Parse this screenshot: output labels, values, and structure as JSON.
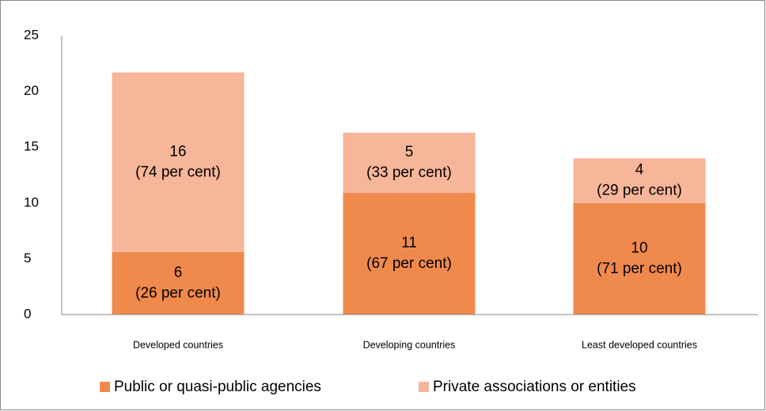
{
  "chart_data": {
    "type": "stacked_bar",
    "categories": [
      "Developed countries",
      "Developing countries",
      "Least developed countries"
    ],
    "series": [
      {
        "name": "Public or quasi-public agencies",
        "color": "#f0894c",
        "values": [
          5.6,
          10.9,
          10
        ],
        "value_labels": [
          [
            "6",
            "(26 per cent)"
          ],
          [
            "11",
            "(67 per cent)"
          ],
          [
            "10",
            "(71 per cent)"
          ]
        ]
      },
      {
        "name": "Private associations or entities",
        "color": "#f7b599",
        "values": [
          16.1,
          5.4,
          4
        ],
        "value_labels": [
          [
            "16",
            "(74 per cent)"
          ],
          [
            "5",
            "(33 per cent)"
          ],
          [
            "4",
            "(29 per cent)"
          ]
        ]
      }
    ],
    "ylim": [
      0,
      25
    ],
    "yticks": [
      0,
      5,
      10,
      15,
      20,
      25
    ],
    "grid": false,
    "legend": "bottom"
  }
}
